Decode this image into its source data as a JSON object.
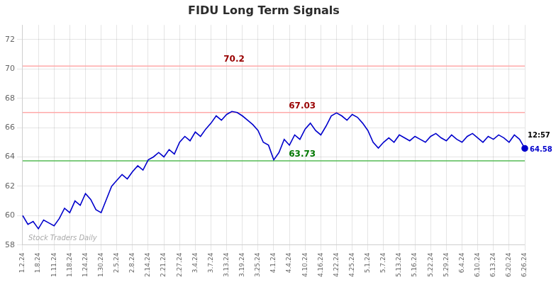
{
  "chart_data": {
    "type": "line",
    "title": "FIDU Long Term Signals",
    "categories": [
      "1.2.24",
      null,
      null,
      "1.8.24",
      null,
      null,
      "1.11.24",
      null,
      null,
      "1.18.24",
      null,
      null,
      "1.24.24",
      null,
      null,
      "1.30.24",
      null,
      null,
      "2.5.24",
      null,
      null,
      "2.8.24",
      null,
      null,
      "2.14.24",
      null,
      null,
      "2.21.24",
      null,
      null,
      "2.27.24",
      null,
      null,
      "3.4.24",
      null,
      null,
      "3.7.24",
      null,
      null,
      "3.13.24",
      null,
      null,
      "3.19.24",
      null,
      null,
      "3.25.24",
      null,
      null,
      "4.1.24",
      null,
      null,
      "4.4.24",
      null,
      null,
      "4.10.24",
      null,
      null,
      "4.16.24",
      null,
      null,
      "4.22.24",
      null,
      null,
      "4.25.24",
      null,
      null,
      "5.1.24",
      null,
      null,
      "5.7.24",
      null,
      null,
      "5.13.24",
      null,
      null,
      "5.16.24",
      null,
      null,
      "5.22.24",
      null,
      null,
      "5.29.24",
      null,
      null,
      "6.4.24",
      null,
      null,
      "6.10.24",
      null,
      null,
      "6.13.24",
      null,
      null,
      "6.20.24",
      null,
      null,
      "6.26.24"
    ],
    "values": [
      60.0,
      59.4,
      59.6,
      59.1,
      59.7,
      59.5,
      59.3,
      59.8,
      60.5,
      60.2,
      61.0,
      60.7,
      61.5,
      61.1,
      60.4,
      60.2,
      61.1,
      62.0,
      62.4,
      62.8,
      62.5,
      63.0,
      63.4,
      63.1,
      63.8,
      64.0,
      64.3,
      64.0,
      64.5,
      64.2,
      65.0,
      65.4,
      65.1,
      65.7,
      65.4,
      65.9,
      66.3,
      66.8,
      66.5,
      66.9,
      67.1,
      67.03,
      66.8,
      66.5,
      66.2,
      65.8,
      65.0,
      64.8,
      63.8,
      64.3,
      65.2,
      64.8,
      65.5,
      65.2,
      65.9,
      66.3,
      65.8,
      65.5,
      66.1,
      66.8,
      67.0,
      66.8,
      66.5,
      66.9,
      66.7,
      66.3,
      65.8,
      65.0,
      64.6,
      65.0,
      65.3,
      65.0,
      65.5,
      65.3,
      65.1,
      65.4,
      65.2,
      65.0,
      65.4,
      65.6,
      65.3,
      65.1,
      65.5,
      65.2,
      65.0,
      65.4,
      65.6,
      65.3,
      65.0,
      65.4,
      65.2,
      65.5,
      65.3,
      65.0,
      65.5,
      65.2,
      64.58
    ],
    "color": "#0000cc",
    "ylim": [
      58,
      73
    ],
    "yticks": [
      58,
      60,
      62,
      64,
      66,
      68,
      70,
      72
    ],
    "grid": true,
    "annotations": [
      {
        "type": "hline",
        "value": 70.2,
        "label": "70.2",
        "color": "#ffaaaa",
        "label_color": "#990000"
      },
      {
        "type": "hline",
        "value": 67.03,
        "label": "67.03",
        "color": "#ffaaaa",
        "label_color": "#990000"
      },
      {
        "type": "hline",
        "value": 63.73,
        "label": "63.73",
        "color": "#55bb55",
        "label_color": "#007700"
      },
      {
        "type": "point_label",
        "text": "12:57",
        "color": "#000000"
      },
      {
        "type": "point_label",
        "text": "64.58",
        "color": "#0000cc"
      },
      {
        "type": "watermark",
        "text": "Stock Traders Daily",
        "color": "#aaaaaa"
      }
    ]
  }
}
